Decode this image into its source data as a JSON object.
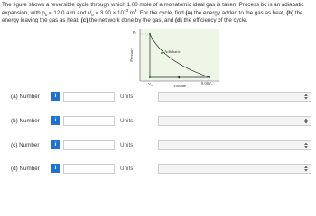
{
  "problem": {
    "parts": [
      {
        "text": "The figure shows a reversible cycle through which 1.00 mole of a monatomic ideal gas is taken. Process bc is an adiabatic expansion, with p",
        "style": "plain"
      },
      {
        "text": "b",
        "style": "sub"
      },
      {
        "text": " = 12.0 atm and V",
        "style": "plain"
      },
      {
        "text": "b",
        "style": "sub"
      },
      {
        "text": " = 3.90 × 10",
        "style": "plain"
      },
      {
        "text": "−3",
        "style": "sup"
      },
      {
        "text": " m",
        "style": "plain"
      },
      {
        "text": "3",
        "style": "sup"
      },
      {
        "text": ". For the cycle, find ",
        "style": "plain"
      },
      {
        "text": "(a)",
        "style": "bold"
      },
      {
        "text": " the energy added to the gas as heat, ",
        "style": "plain"
      },
      {
        "text": "(b)",
        "style": "bold"
      },
      {
        "text": " the energy leaving the gas as heat, ",
        "style": "plain"
      },
      {
        "text": "(c)",
        "style": "bold"
      },
      {
        "text": " the net work done by the gas, and ",
        "style": "plain"
      },
      {
        "text": "(d)",
        "style": "bold"
      },
      {
        "text": " the efficiency of the cycle.",
        "style": "plain"
      }
    ]
  },
  "figure": {
    "y_axis": "Pressure",
    "x_axis": "Volume",
    "p_label": "p",
    "v_label": "V",
    "v_end_label": "8.00V",
    "subscript": "b",
    "curve_label": "Adiabatic"
  },
  "rows": [
    {
      "label": "(a)",
      "field": "Number",
      "info": "i",
      "units": "Units"
    },
    {
      "label": "(b)",
      "field": "Number",
      "info": "i",
      "units": "Units"
    },
    {
      "label": "(c)",
      "field": "Number",
      "info": "i",
      "units": "Units"
    },
    {
      "label": "(d)",
      "field": "Number",
      "info": "i",
      "units": "Units"
    }
  ]
}
